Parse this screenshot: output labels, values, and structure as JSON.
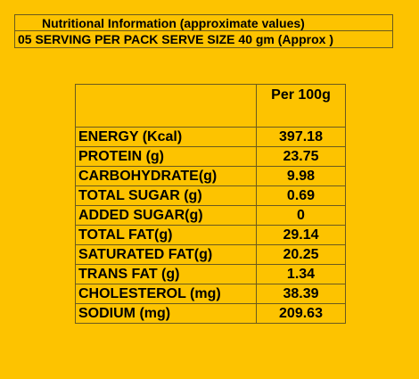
{
  "header": {
    "title": "Nutritional Information (approximate values)",
    "serving": "05 SERVING PER PACK  SERVE SIZE 40 gm (Approx )"
  },
  "table": {
    "column_header": "Per 100g",
    "rows": [
      {
        "name": "ENERGY (Kcal)",
        "value": "397.18"
      },
      {
        "name": "PROTEIN (g)",
        "value": "23.75"
      },
      {
        "name": "CARBOHYDRATE(g)",
        "value": "9.98"
      },
      {
        "name": "TOTAL SUGAR (g)",
        "value": "0.69"
      },
      {
        "name": "ADDED SUGAR(g)",
        "value": "0"
      },
      {
        "name": "TOTAL FAT(g)",
        "value": "29.14"
      },
      {
        "name": "SATURATED  FAT(g)",
        "value": "20.25"
      },
      {
        "name": "TRANS FAT (g)",
        "value": "1.34"
      },
      {
        "name": "CHOLESTEROL (mg)",
        "value": "38.39"
      },
      {
        "name": "SODIUM (mg)",
        "value": "209.63"
      }
    ]
  },
  "colors": {
    "background": "#fdc300",
    "text": "#000000",
    "border": "#6b5a1e"
  }
}
